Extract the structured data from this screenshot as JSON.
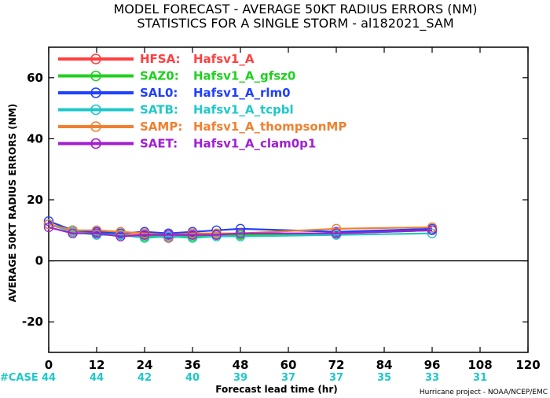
{
  "chart_data": {
    "type": "line",
    "title": "MODEL FORECAST - AVERAGE 50KT RADIUS ERRORS (NM)",
    "subtitle": "STATISTICS FOR A SINGLE STORM - al182021_SAM",
    "xlabel": "Forecast lead time (hr)",
    "ylabel": "AVERAGE 50KT RADIUS ERRORS (NM)",
    "xlim": [
      0,
      120
    ],
    "ylim": [
      -30,
      70
    ],
    "xticks": [
      0,
      12,
      24,
      36,
      48,
      60,
      72,
      84,
      96,
      108,
      120
    ],
    "yticks": [
      -20,
      0,
      20,
      40,
      60
    ],
    "zero_line": true,
    "legend_position": "top-left",
    "x": [
      0,
      6,
      12,
      18,
      24,
      30,
      36,
      42,
      48,
      72,
      96
    ],
    "series": [
      {
        "name": "HFSA:",
        "label": "Hafsv1_A",
        "color": "#ff4040",
        "values": [
          12,
          9.5,
          9.5,
          8.5,
          8.5,
          7.5,
          8.5,
          8.5,
          8.5,
          9,
          10
        ]
      },
      {
        "name": "SAZ0:",
        "label": "Hafsv1_A_gfsz0",
        "color": "#20d020",
        "values": [
          12,
          9.5,
          9,
          8.5,
          8,
          8,
          8,
          8.5,
          8.5,
          9,
          10
        ]
      },
      {
        "name": "SAL0:",
        "label": "Hafsv1_A_rlm0",
        "color": "#2040ff",
        "values": [
          13,
          10,
          9.5,
          9,
          9.5,
          9,
          9.5,
          10,
          10.5,
          9.5,
          10.5
        ]
      },
      {
        "name": "SATB:",
        "label": "Hafsv1_A_tcpbl",
        "color": "#20c8c8",
        "values": [
          12,
          9.5,
          8.5,
          8.5,
          7.5,
          8,
          7.5,
          8,
          8,
          8.5,
          9
        ]
      },
      {
        "name": "SAMP:",
        "label": "Hafsv1_A_thompsonMP",
        "color": "#f08030",
        "values": [
          12,
          10,
          10,
          9.5,
          9,
          8.5,
          9,
          9,
          9,
          10.5,
          11
        ]
      },
      {
        "name": "SAET:",
        "label": "Hafsv1_A_clam0p1",
        "color": "#a020d0",
        "values": [
          11,
          9,
          9,
          8,
          8.5,
          8.5,
          8.5,
          8.5,
          9,
          9,
          10
        ]
      }
    ],
    "cases": {
      "label": "#CASE",
      "color": "#20c8c8",
      "x": [
        0,
        12,
        24,
        36,
        48,
        60,
        72,
        84,
        96,
        108
      ],
      "values": [
        "44",
        "44",
        "42",
        "40",
        "39",
        "37",
        "37",
        "35",
        "33",
        "31"
      ]
    },
    "credit": "Hurricane project - NOAA/NCEP/EMC"
  }
}
